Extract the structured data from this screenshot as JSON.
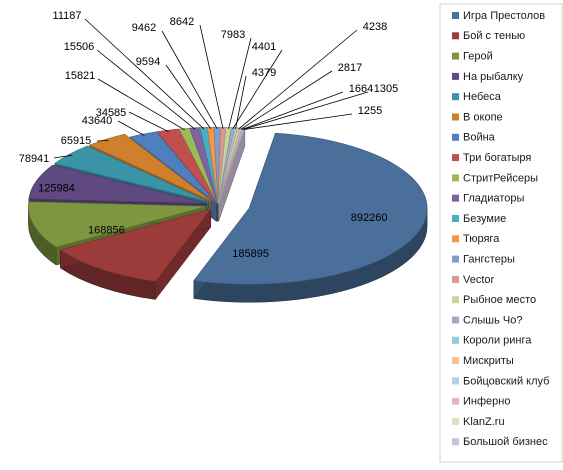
{
  "chart_data": {
    "type": "pie",
    "style": "3d-exploded",
    "legend_placement": "right",
    "title": "",
    "series": [
      {
        "name": "Игра Престолов",
        "value": 892260,
        "color": "#4a6f9b"
      },
      {
        "name": "Бой с тенью",
        "value": 185895,
        "color": "#9b3b3a"
      },
      {
        "name": "Герой",
        "value": 168856,
        "color": "#7e963f"
      },
      {
        "name": "На рыбалку",
        "value": 125984,
        "color": "#5f4980"
      },
      {
        "name": "Небеса",
        "value": 78941,
        "color": "#3b93a8"
      },
      {
        "name": "В окопе",
        "value": 65915,
        "color": "#d0802d"
      },
      {
        "name": "Война",
        "value": 43640,
        "color": "#4f7fbf"
      },
      {
        "name": "Три богатыря",
        "value": 34585,
        "color": "#c0504d"
      },
      {
        "name": "СтритРейсеры",
        "value": 15821,
        "color": "#9bbb59"
      },
      {
        "name": "Гладиаторы",
        "value": 15506,
        "color": "#8064a2"
      },
      {
        "name": "Безумие",
        "value": 11187,
        "color": "#4bacc6"
      },
      {
        "name": "Тюряга",
        "value": 9594,
        "color": "#f79646"
      },
      {
        "name": "Гангстеры",
        "value": 9462,
        "color": "#7f9fc8"
      },
      {
        "name": "Vector",
        "value": 8642,
        "color": "#d99694"
      },
      {
        "name": "Рыбное место",
        "value": 7983,
        "color": "#c3d69b"
      },
      {
        "name": "Слышь Чо?",
        "value": 4401,
        "color": "#b3a2c7"
      },
      {
        "name": "Короли ринга",
        "value": 4379,
        "color": "#93cddd"
      },
      {
        "name": "Мискриты",
        "value": 4238,
        "color": "#fac090"
      },
      {
        "name": "Бойцовский клуб",
        "value": 2817,
        "color": "#b9cde5"
      },
      {
        "name": "Инферно",
        "value": 1664,
        "color": "#e6b9b8"
      },
      {
        "name": "KlanZ.ru",
        "value": 1305,
        "color": "#d7e4bd"
      },
      {
        "name": "Большой бизнес",
        "value": 1255,
        "color": "#ccc1da"
      }
    ]
  }
}
